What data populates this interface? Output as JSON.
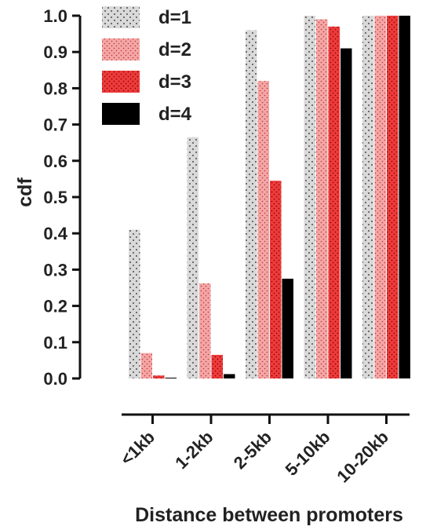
{
  "chart_data": {
    "type": "bar",
    "xlabel": "Distance between promoters",
    "ylabel": "cdf",
    "ylim": [
      0,
      1.0
    ],
    "yticks": [
      "0.0",
      "0.1",
      "0.2",
      "0.3",
      "0.4",
      "0.5",
      "0.6",
      "0.7",
      "0.8",
      "0.9",
      "1.0"
    ],
    "categories": [
      "<1kb",
      "1-2kb",
      "2-5kb",
      "5-10kb",
      "10-20kb"
    ],
    "legend_position": "top-left",
    "grid": false,
    "series": [
      {
        "name": "d=1",
        "color": "#d9d9d9",
        "pattern": "sparse-dots",
        "values": [
          0.41,
          0.665,
          0.96,
          1.0,
          1.0
        ]
      },
      {
        "name": "d=2",
        "color": "#f4a6a6",
        "pattern": "dense-dots",
        "values": [
          0.07,
          0.262,
          0.82,
          0.99,
          1.0
        ]
      },
      {
        "name": "d=3",
        "color": "#ee3a3a",
        "pattern": "dense-dots",
        "values": [
          0.008,
          0.065,
          0.545,
          0.97,
          1.0
        ]
      },
      {
        "name": "d=4",
        "color": "#000000",
        "pattern": "solid",
        "values": [
          0.002,
          0.012,
          0.275,
          0.91,
          1.0
        ]
      }
    ]
  }
}
